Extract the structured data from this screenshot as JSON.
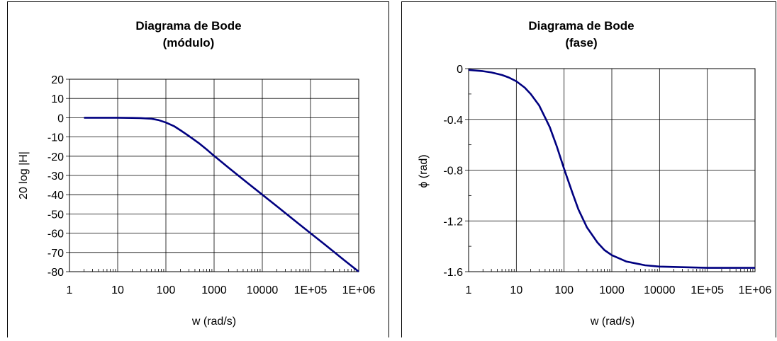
{
  "chart_data": [
    {
      "type": "line",
      "title": "Diagrama de Bode",
      "subtitle": "(módulo)",
      "xlabel": "w  (rad/s)",
      "ylabel": "20 log |H|",
      "x_scale": "log",
      "xlim": [
        1,
        1000000
      ],
      "ylim": [
        -80,
        20
      ],
      "x_ticks": [
        "1",
        "10",
        "100",
        "1000",
        "10000",
        "1E+05",
        "1E+06"
      ],
      "y_ticks": [
        "20",
        "10",
        "0",
        "-10",
        "-20",
        "-30",
        "-40",
        "-50",
        "-60",
        "-70",
        "-80"
      ],
      "grid": true,
      "line_color": "#000080",
      "series": [
        {
          "x": [
            2,
            5,
            10,
            20,
            30,
            50,
            70,
            100,
            150,
            200,
            300,
            500,
            700,
            1000,
            2000,
            5000,
            10000,
            20000,
            50000,
            100000,
            200000,
            500000,
            1000000
          ],
          "y": [
            0,
            0,
            0,
            -0.1,
            -0.2,
            -0.5,
            -1.2,
            -2.5,
            -4.5,
            -6.5,
            -9.5,
            -13.5,
            -16.5,
            -19.8,
            -26,
            -34,
            -40,
            -46,
            -54,
            -60,
            -66,
            -74,
            -80
          ]
        }
      ]
    },
    {
      "type": "line",
      "title": "Diagrama de Bode",
      "subtitle": "(fase)",
      "xlabel": "w  (rad/s)",
      "ylabel": "ϕ (rad)",
      "x_scale": "log",
      "xlim": [
        1,
        1000000
      ],
      "ylim": [
        -1.6,
        0
      ],
      "x_ticks": [
        "1",
        "10",
        "100",
        "1000",
        "10000",
        "1E+05",
        "1E+06"
      ],
      "y_ticks": [
        "0",
        "-0.4",
        "-0.8",
        "-1.2",
        "-1.6"
      ],
      "grid": true,
      "line_color": "#000080",
      "series": [
        {
          "x": [
            1,
            2,
            3,
            5,
            7,
            10,
            15,
            20,
            30,
            50,
            70,
            100,
            150,
            200,
            300,
            500,
            700,
            1000,
            2000,
            5000,
            10000,
            100000,
            1000000
          ],
          "y": [
            -0.01,
            -0.02,
            -0.03,
            -0.05,
            -0.07,
            -0.1,
            -0.15,
            -0.2,
            -0.29,
            -0.46,
            -0.61,
            -0.79,
            -0.98,
            -1.11,
            -1.25,
            -1.37,
            -1.43,
            -1.47,
            -1.52,
            -1.55,
            -1.56,
            -1.57,
            -1.57
          ]
        }
      ]
    }
  ]
}
